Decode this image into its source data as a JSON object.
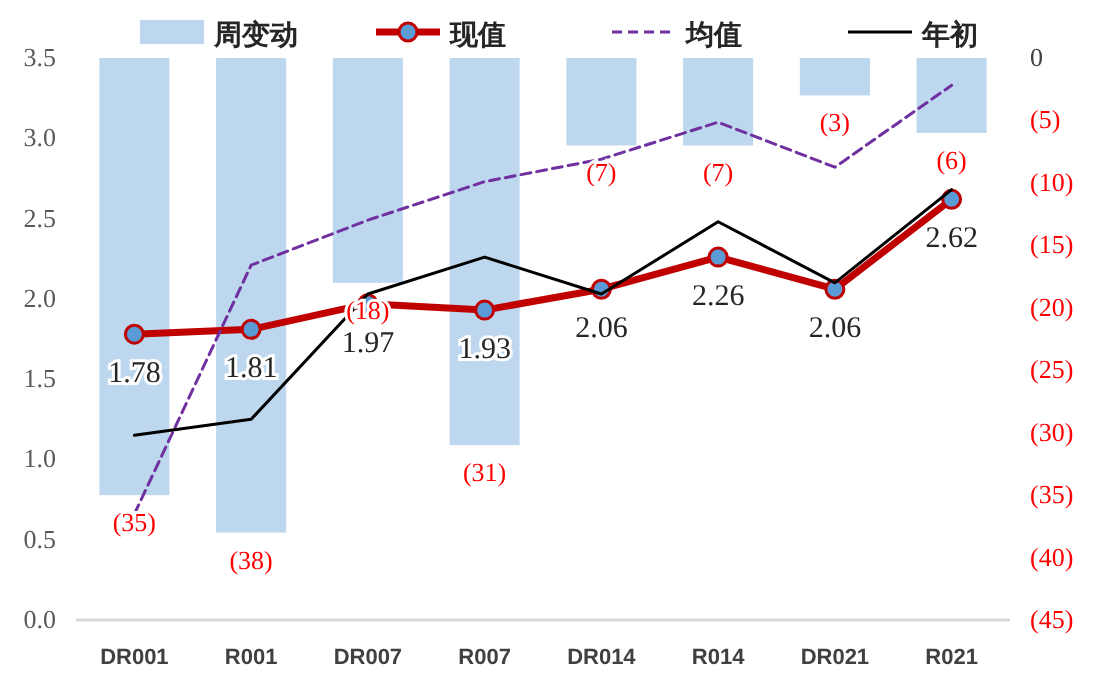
{
  "chart_data": {
    "type": "bar",
    "categories": [
      "DR001",
      "R001",
      "DR007",
      "R007",
      "DR014",
      "R014",
      "DR021",
      "R021"
    ],
    "series": [
      {
        "name": "周变动",
        "axis": "y2",
        "color": "#bdd7ee",
        "values": [
          -35,
          -38,
          -18,
          -31,
          -7,
          -7,
          -3,
          -6
        ],
        "value_labels": [
          "(35)",
          "(38)",
          "(18)",
          "(31)",
          "(7)",
          "(7)",
          "(3)",
          "(6)"
        ]
      },
      {
        "name": "现值",
        "type": "line",
        "color": "#c00000",
        "marker": "circle",
        "line_style": "solid",
        "values": [
          1.78,
          1.81,
          1.97,
          1.93,
          2.06,
          2.26,
          2.06,
          2.62
        ],
        "value_labels": [
          "1.78",
          "1.81",
          "1.97",
          "1.93",
          "2.06",
          "2.26",
          "2.06",
          "2.62"
        ]
      },
      {
        "name": "均值",
        "type": "line",
        "color": "#7030a0",
        "marker": "none",
        "line_style": "dashed",
        "values": [
          0.66,
          2.21,
          2.49,
          2.73,
          2.87,
          3.1,
          2.82,
          3.33
        ]
      },
      {
        "name": "年初",
        "type": "line",
        "color": "#000000",
        "marker": "none",
        "line_style": "solid",
        "values": [
          1.15,
          1.25,
          2.03,
          2.26,
          2.03,
          2.48,
          2.1,
          2.68
        ]
      }
    ],
    "ylim": [
      0,
      3.5
    ],
    "yticks": [
      {
        "value": 0,
        "label": "0.0"
      },
      {
        "value": 0.5,
        "label": "0.5"
      },
      {
        "value": 1,
        "label": "1.0"
      },
      {
        "value": 1.5,
        "label": "1.5"
      },
      {
        "value": 2,
        "label": "2.0"
      },
      {
        "value": 2.5,
        "label": "2.5"
      },
      {
        "value": 3,
        "label": "3.0"
      },
      {
        "value": 3.5,
        "label": "3.5"
      }
    ],
    "y2lim": [
      -45,
      0
    ],
    "y2ticks": [
      0,
      {
        "value": -5,
        "label": "(5)"
      },
      {
        "value": -10,
        "label": "(10)"
      },
      {
        "value": -15,
        "label": "(15)"
      },
      {
        "value": -20,
        "label": "(20)"
      },
      {
        "value": -25,
        "label": "(25)"
      },
      {
        "value": -30,
        "label": "(30)"
      },
      {
        "value": -35,
        "label": "(35)"
      },
      {
        "value": -40,
        "label": "(40)"
      },
      {
        "value": -45,
        "label": "(45)"
      }
    ],
    "grid": false,
    "legend": "top"
  }
}
